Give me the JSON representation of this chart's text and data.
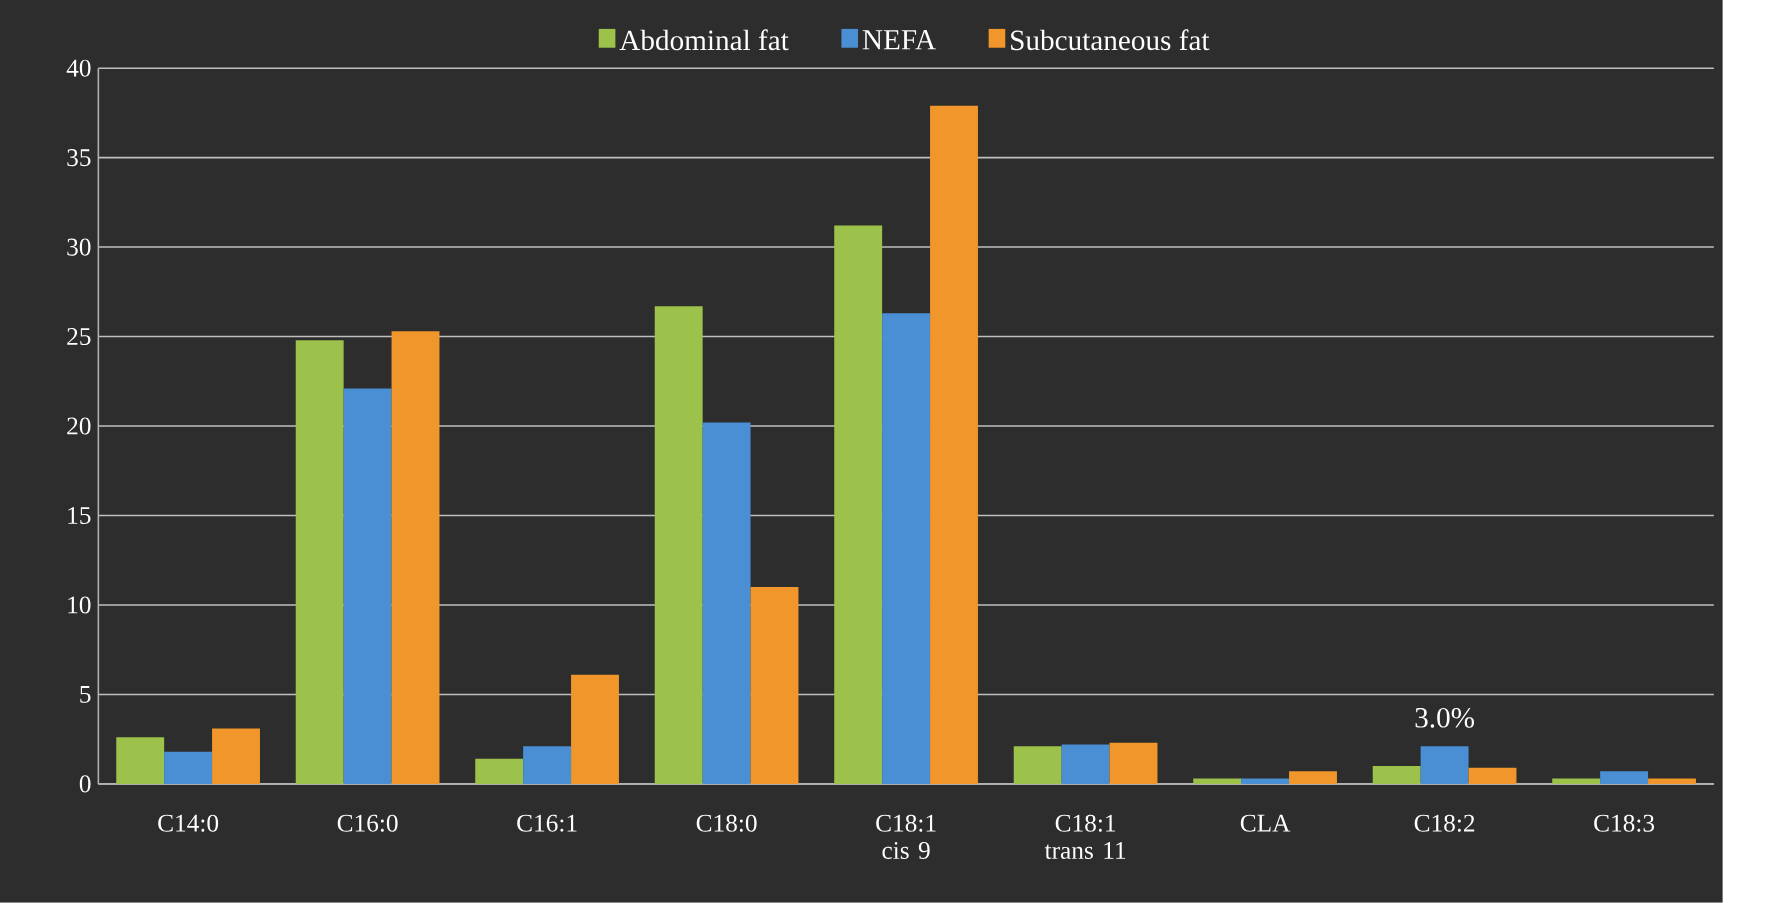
{
  "chart_data": {
    "type": "bar",
    "categories": [
      "C14:0",
      "C16:0",
      "C16:1",
      "C18:0",
      "C18:1 cis 9",
      "C18:1 trans 11",
      "CLA",
      "C18:2",
      "C18:3"
    ],
    "series": [
      {
        "name": "Abdominal fat",
        "color": "#9dc24b",
        "values": [
          2.6,
          24.8,
          1.4,
          26.7,
          31.2,
          2.1,
          0.3,
          1.0,
          0.3
        ]
      },
      {
        "name": "NEFA",
        "color": "#4a8fd4",
        "values": [
          1.8,
          22.1,
          2.1,
          20.2,
          26.3,
          2.2,
          0.3,
          2.1,
          0.7
        ]
      },
      {
        "name": "Subcutaneous fat",
        "color": "#f0962b",
        "values": [
          3.1,
          25.3,
          6.1,
          11.0,
          37.9,
          2.3,
          0.7,
          0.9,
          0.3
        ]
      }
    ],
    "ylim": [
      0,
      40
    ],
    "yticks": [
      0,
      5,
      10,
      15,
      20,
      25,
      30,
      35,
      40
    ],
    "grid": "y",
    "legend": "top",
    "annotations": [
      {
        "text": "3.0%",
        "x": "C18:2",
        "y": 2.1
      }
    ]
  }
}
